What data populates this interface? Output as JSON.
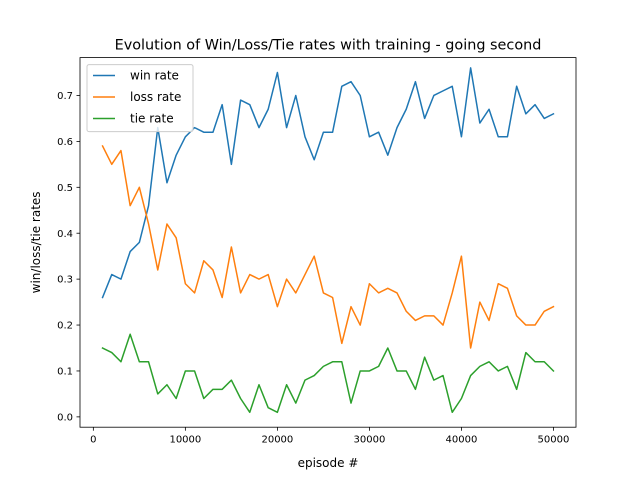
{
  "chart_data": {
    "type": "line",
    "title": "Evolution of Win/Loss/Tie rates with training - going second",
    "xlabel": "episode #",
    "ylabel": "win/loss/tie rates",
    "xlim": [
      -1450,
      52450
    ],
    "ylim": [
      -0.0225,
      0.7825
    ],
    "xticks": [
      0,
      10000,
      20000,
      30000,
      40000,
      50000
    ],
    "yticks": [
      0.0,
      0.1,
      0.2,
      0.3,
      0.4,
      0.5,
      0.6,
      0.7
    ],
    "grid": false,
    "legend": "top-left",
    "x": [
      1000,
      2000,
      3000,
      4000,
      5000,
      6000,
      7000,
      8000,
      9000,
      10000,
      11000,
      12000,
      13000,
      14000,
      15000,
      16000,
      17000,
      18000,
      19000,
      20000,
      21000,
      22000,
      23000,
      24000,
      25000,
      26000,
      27000,
      28000,
      29000,
      30000,
      31000,
      32000,
      33000,
      34000,
      35000,
      36000,
      37000,
      38000,
      39000,
      40000,
      41000,
      42000,
      43000,
      44000,
      45000,
      46000,
      47000,
      48000,
      49000,
      50000
    ],
    "series": [
      {
        "name": "win rate",
        "color": "#1f77b4",
        "values": [
          0.26,
          0.31,
          0.3,
          0.36,
          0.38,
          0.46,
          0.63,
          0.51,
          0.57,
          0.61,
          0.63,
          0.62,
          0.62,
          0.68,
          0.55,
          0.69,
          0.68,
          0.63,
          0.67,
          0.75,
          0.63,
          0.7,
          0.61,
          0.56,
          0.62,
          0.62,
          0.72,
          0.73,
          0.7,
          0.61,
          0.62,
          0.57,
          0.63,
          0.67,
          0.73,
          0.65,
          0.7,
          0.71,
          0.72,
          0.61,
          0.76,
          0.64,
          0.67,
          0.61,
          0.61,
          0.72,
          0.66,
          0.68,
          0.65,
          0.66
        ]
      },
      {
        "name": "loss rate",
        "color": "#ff7f0e",
        "values": [
          0.59,
          0.55,
          0.58,
          0.46,
          0.5,
          0.42,
          0.32,
          0.42,
          0.39,
          0.29,
          0.27,
          0.34,
          0.32,
          0.26,
          0.37,
          0.27,
          0.31,
          0.3,
          0.31,
          0.24,
          0.3,
          0.27,
          0.31,
          0.35,
          0.27,
          0.26,
          0.16,
          0.24,
          0.2,
          0.29,
          0.27,
          0.28,
          0.27,
          0.23,
          0.21,
          0.22,
          0.22,
          0.2,
          0.27,
          0.35,
          0.15,
          0.25,
          0.21,
          0.29,
          0.28,
          0.22,
          0.2,
          0.2,
          0.23,
          0.24
        ]
      },
      {
        "name": "tie rate",
        "color": "#2ca02c",
        "values": [
          0.15,
          0.14,
          0.12,
          0.18,
          0.12,
          0.12,
          0.05,
          0.07,
          0.04,
          0.1,
          0.1,
          0.04,
          0.06,
          0.06,
          0.08,
          0.04,
          0.01,
          0.07,
          0.02,
          0.01,
          0.07,
          0.03,
          0.08,
          0.09,
          0.11,
          0.12,
          0.12,
          0.03,
          0.1,
          0.1,
          0.11,
          0.15,
          0.1,
          0.1,
          0.06,
          0.13,
          0.08,
          0.09,
          0.01,
          0.04,
          0.09,
          0.11,
          0.12,
          0.1,
          0.11,
          0.06,
          0.14,
          0.12,
          0.12,
          0.1
        ]
      }
    ]
  }
}
